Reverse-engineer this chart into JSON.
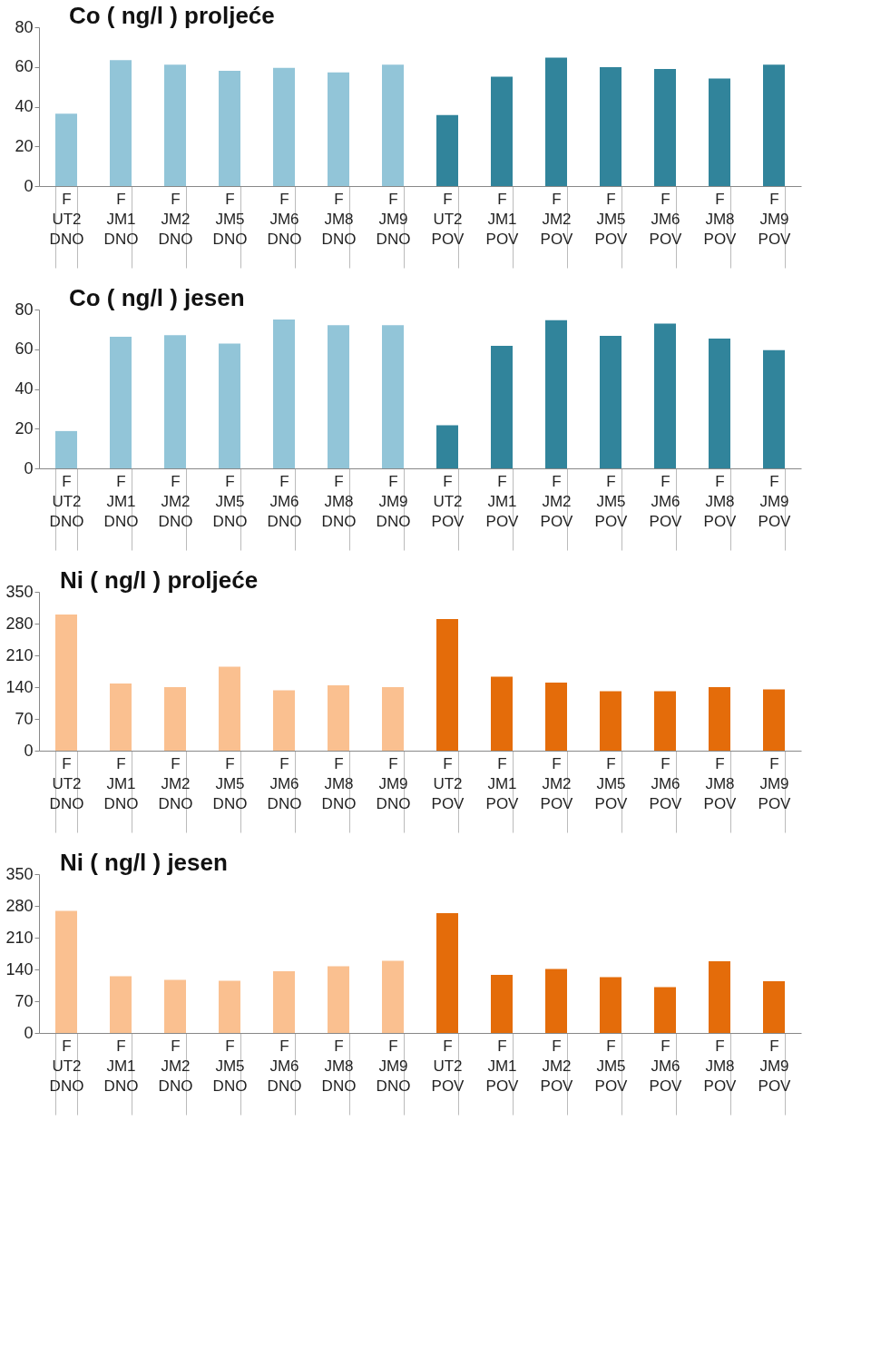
{
  "chart_data": [
    {
      "type": "bar",
      "title": "Co ( ng/l ) proljeće",
      "categories": [
        "F\nUT2\nDNO",
        "F\nJM1\nDNO",
        "F\nJM2\nDNO",
        "F\nJM5\nDNO",
        "F\nJM6\nDNO",
        "F\nJM8\nDNO",
        "F\nJM9\nDNO",
        "F\nUT2\nPOV",
        "F\nJM1\nPOV",
        "F\nJM2\nPOV",
        "F\nJM5\nPOV",
        "F\nJM6\nPOV",
        "F\nJM8\nPOV",
        "F\nJM9\nPOV"
      ],
      "values": [
        36.5,
        63.4,
        61.2,
        58.1,
        59.5,
        57.3,
        61.2,
        35.8,
        55.1,
        64.7,
        59.9,
        59,
        54.2,
        61.2
      ],
      "colors": [
        "#92c5d8",
        "#92c5d8",
        "#92c5d8",
        "#92c5d8",
        "#92c5d8",
        "#92c5d8",
        "#92c5d8",
        "#31849b",
        "#31849b",
        "#31849b",
        "#31849b",
        "#31849b",
        "#31849b",
        "#31849b"
      ],
      "ylim": [
        0,
        80
      ],
      "yticks": [
        0,
        20,
        40,
        60,
        80
      ],
      "grid": false
    },
    {
      "type": "bar",
      "title": "Co ( ng/l ) jesen",
      "categories": [
        "F\nUT2\nDNO",
        "F\nJM1\nDNO",
        "F\nJM2\nDNO",
        "F\nJM5\nDNO",
        "F\nJM6\nDNO",
        "F\nJM8\nDNO",
        "F\nJM9\nDNO",
        "F\nUT2\nPOV",
        "F\nJM1\nPOV",
        "F\nJM2\nPOV",
        "F\nJM5\nPOV",
        "F\nJM6\nPOV",
        "F\nJM8\nPOV",
        "F\nJM9\nPOV"
      ],
      "values": [
        18.8,
        66.3,
        67.1,
        62.9,
        75,
        72.1,
        72.1,
        21.7,
        61.7,
        74.6,
        66.7,
        72.9,
        65.4,
        59.6
      ],
      "colors": [
        "#92c5d8",
        "#92c5d8",
        "#92c5d8",
        "#92c5d8",
        "#92c5d8",
        "#92c5d8",
        "#92c5d8",
        "#31849b",
        "#31849b",
        "#31849b",
        "#31849b",
        "#31849b",
        "#31849b",
        "#31849b"
      ],
      "ylim": [
        0,
        80
      ],
      "yticks": [
        0,
        20,
        40,
        60,
        80
      ],
      "grid": false
    },
    {
      "type": "bar",
      "title": "Ni ( ng/l ) proljeće",
      "categories": [
        "F\nUT2\nDNO",
        "F\nJM1\nDNO",
        "F\nJM2\nDNO",
        "F\nJM5\nDNO",
        "F\nJM6\nDNO",
        "F\nJM8\nDNO",
        "F\nJM9\nDNO",
        "F\nUT2\nPOV",
        "F\nJM1\nPOV",
        "F\nJM2\nPOV",
        "F\nJM5\nPOV",
        "F\nJM6\nPOV",
        "F\nJM8\nPOV",
        "F\nJM9\nPOV"
      ],
      "values": [
        300,
        148,
        140,
        185,
        133,
        144,
        140,
        290,
        163,
        150,
        131,
        131,
        140,
        135
      ],
      "colors": [
        "#fac090",
        "#fac090",
        "#fac090",
        "#fac090",
        "#fac090",
        "#fac090",
        "#fac090",
        "#e46c0a",
        "#e46c0a",
        "#e46c0a",
        "#e46c0a",
        "#e46c0a",
        "#e46c0a",
        "#e46c0a"
      ],
      "ylim": [
        0,
        350
      ],
      "yticks": [
        0,
        70,
        140,
        210,
        280,
        350
      ],
      "grid": false
    },
    {
      "type": "bar",
      "title": "Ni ( ng/l ) jesen",
      "categories": [
        "F\nUT2\nDNO",
        "F\nJM1\nDNO",
        "F\nJM2\nDNO",
        "F\nJM5\nDNO",
        "F\nJM6\nDNO",
        "F\nJM8\nDNO",
        "F\nJM9\nDNO",
        "F\nUT2\nPOV",
        "F\nJM1\nPOV",
        "F\nJM2\nPOV",
        "F\nJM5\nPOV",
        "F\nJM6\nPOV",
        "F\nJM8\nPOV",
        "F\nJM9\nPOV"
      ],
      "values": [
        269,
        125,
        117,
        115,
        136,
        147,
        159,
        264,
        128,
        141,
        123,
        101,
        158,
        114
      ],
      "colors": [
        "#fac090",
        "#fac090",
        "#fac090",
        "#fac090",
        "#fac090",
        "#fac090",
        "#fac090",
        "#e46c0a",
        "#e46c0a",
        "#e46c0a",
        "#e46c0a",
        "#e46c0a",
        "#e46c0a",
        "#e46c0a"
      ],
      "ylim": [
        0,
        350
      ],
      "yticks": [
        0,
        70,
        140,
        210,
        280,
        350
      ],
      "grid": false
    }
  ]
}
